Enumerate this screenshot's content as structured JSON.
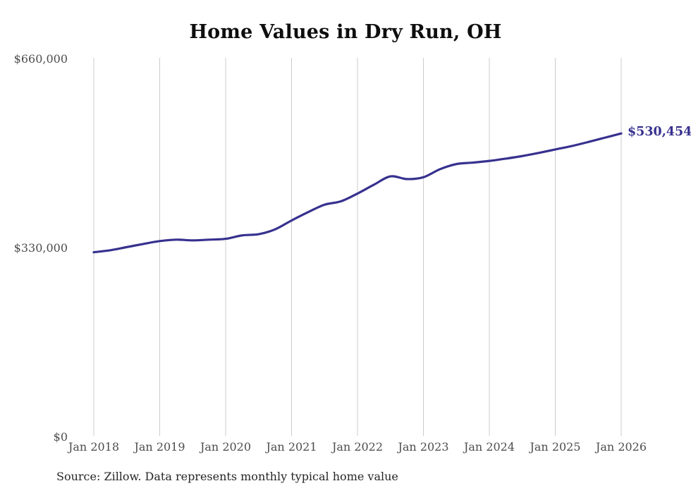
{
  "page": {
    "source_note": "Source: Zillow. Data represents monthly typical home value"
  },
  "colors": {
    "line": "#37318f",
    "grid": "#cccccc",
    "axis_text": "#4d4d4d",
    "title_text": "#0e0e0e",
    "end_label": "#37318f"
  },
  "chart_data": {
    "type": "line",
    "title": "Home Values in Dry Run, OH",
    "xlabel": "",
    "ylabel": "",
    "ylim": [
      0,
      660000
    ],
    "grid": "vertical-only",
    "legend": "none",
    "x_ticks": [
      "Jan 2018",
      "Jan 2019",
      "Jan 2020",
      "Jan 2021",
      "Jan 2022",
      "Jan 2023",
      "Jan 2024",
      "Jan 2025",
      "Jan 2026"
    ],
    "y_ticks": [
      {
        "label": "$660,000",
        "value": 660000
      },
      {
        "label": "$330,000",
        "value": 330000
      },
      {
        "label": "$0",
        "value": 0
      }
    ],
    "end_label": "$530,454",
    "final_value": 530454,
    "series": [
      {
        "name": "Typical home value",
        "x": [
          "Jan 2018",
          "Apr 2018",
          "Jul 2018",
          "Oct 2018",
          "Jan 2019",
          "Apr 2019",
          "Jul 2019",
          "Oct 2019",
          "Jan 2020",
          "Apr 2020",
          "Jul 2020",
          "Oct 2020",
          "Jan 2021",
          "Apr 2021",
          "Jul 2021",
          "Oct 2021",
          "Jan 2022",
          "Apr 2022",
          "Jul 2022",
          "Oct 2022",
          "Jan 2023",
          "Apr 2023",
          "Jul 2023",
          "Oct 2023",
          "Jan 2024",
          "Apr 2024",
          "Jul 2024",
          "Oct 2024",
          "Jan 2025",
          "Apr 2025",
          "Jul 2025",
          "Oct 2025",
          "Jan 2026"
        ],
        "values": [
          323000,
          326500,
          332000,
          337500,
          342500,
          345000,
          343800,
          345000,
          346500,
          352500,
          354500,
          363000,
          378500,
          393000,
          406000,
          412000,
          425500,
          441000,
          455500,
          450800,
          454000,
          468000,
          477000,
          479500,
          482500,
          486500,
          491000,
          496500,
          502500,
          508500,
          515500,
          523000,
          530454
        ]
      }
    ]
  }
}
